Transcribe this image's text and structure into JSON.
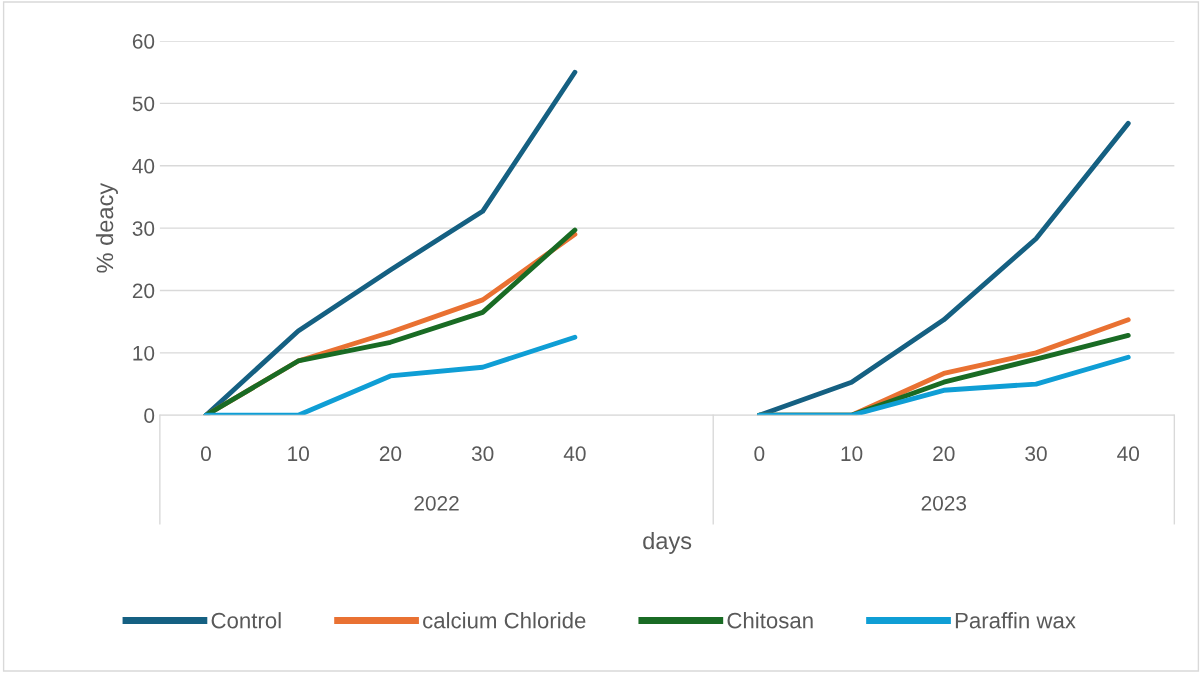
{
  "chart_data": {
    "type": "line",
    "xlabel": "days",
    "ylabel": "% deacy",
    "categories": [
      "0",
      "10",
      "20",
      "30",
      "40",
      null,
      "0",
      "10",
      "20",
      "30",
      "40"
    ],
    "annotations": [
      "2022",
      "2023"
    ],
    "series": [
      {
        "name": "Control",
        "color": "#156082",
        "values": [
          0,
          13.5,
          23.3,
          32.7,
          55,
          null,
          0,
          5.3,
          15.3,
          28.3,
          46.8
        ]
      },
      {
        "name": "calcium Chloride",
        "color": "#e97132",
        "values": [
          0,
          8.7,
          13.3,
          18.5,
          29,
          null,
          0,
          0,
          6.7,
          10,
          15.3
        ]
      },
      {
        "name": "Chitosan",
        "color": "#196b24",
        "values": [
          0,
          8.7,
          11.7,
          16.5,
          29.7,
          null,
          0,
          0,
          5.3,
          9,
          12.8
        ]
      },
      {
        "name": "Paraffin wax",
        "color": "#0f9ed5",
        "values": [
          0,
          0,
          6.3,
          7.7,
          12.5,
          null,
          0,
          0,
          4,
          5,
          9.3
        ]
      }
    ],
    "ylim": [
      0,
      60
    ],
    "yticks": [
      0,
      10,
      20,
      30,
      40,
      50,
      60
    ],
    "grid": "y",
    "legend": "bottom",
    "marker": "none",
    "line_style": "solid"
  }
}
